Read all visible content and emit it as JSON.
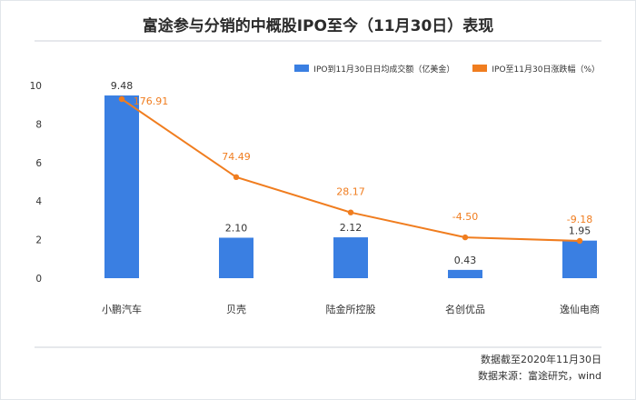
{
  "title": "富途参与分销的中概股IPO至今（11月30日）表现",
  "footer": {
    "line1": "数据截至2020年11月30日",
    "line2": "数据来源：富途研究，wind"
  },
  "colors": {
    "bar": "#3a7fe2",
    "line": "#f07d1f"
  },
  "chart_data": {
    "type": "bar+line",
    "categories": [
      "小鹏汽车",
      "贝壳",
      "陆金所控股",
      "名创优品",
      "逸仙电商"
    ],
    "series": [
      {
        "name": "IPO到11月30日日均成交额（亿美金）",
        "type": "bar",
        "values": [
          9.48,
          2.1,
          2.12,
          0.43,
          1.95
        ],
        "labels": [
          "9.48",
          "2.10",
          "2.12",
          "0.43",
          "1.95"
        ]
      },
      {
        "name": "IPO至11月30日涨跌幅（%）",
        "type": "line",
        "values": [
          176.91,
          74.49,
          28.17,
          -4.5,
          -9.18
        ],
        "labels": [
          "176.91",
          "74.49",
          "28.17",
          "-4.50",
          "-9.18"
        ]
      }
    ],
    "y_ticks": [
      "0",
      "2",
      "4",
      "6",
      "8",
      "10"
    ],
    "ylim": [
      0,
      10
    ],
    "legend_position": "top-right",
    "grid": false
  }
}
